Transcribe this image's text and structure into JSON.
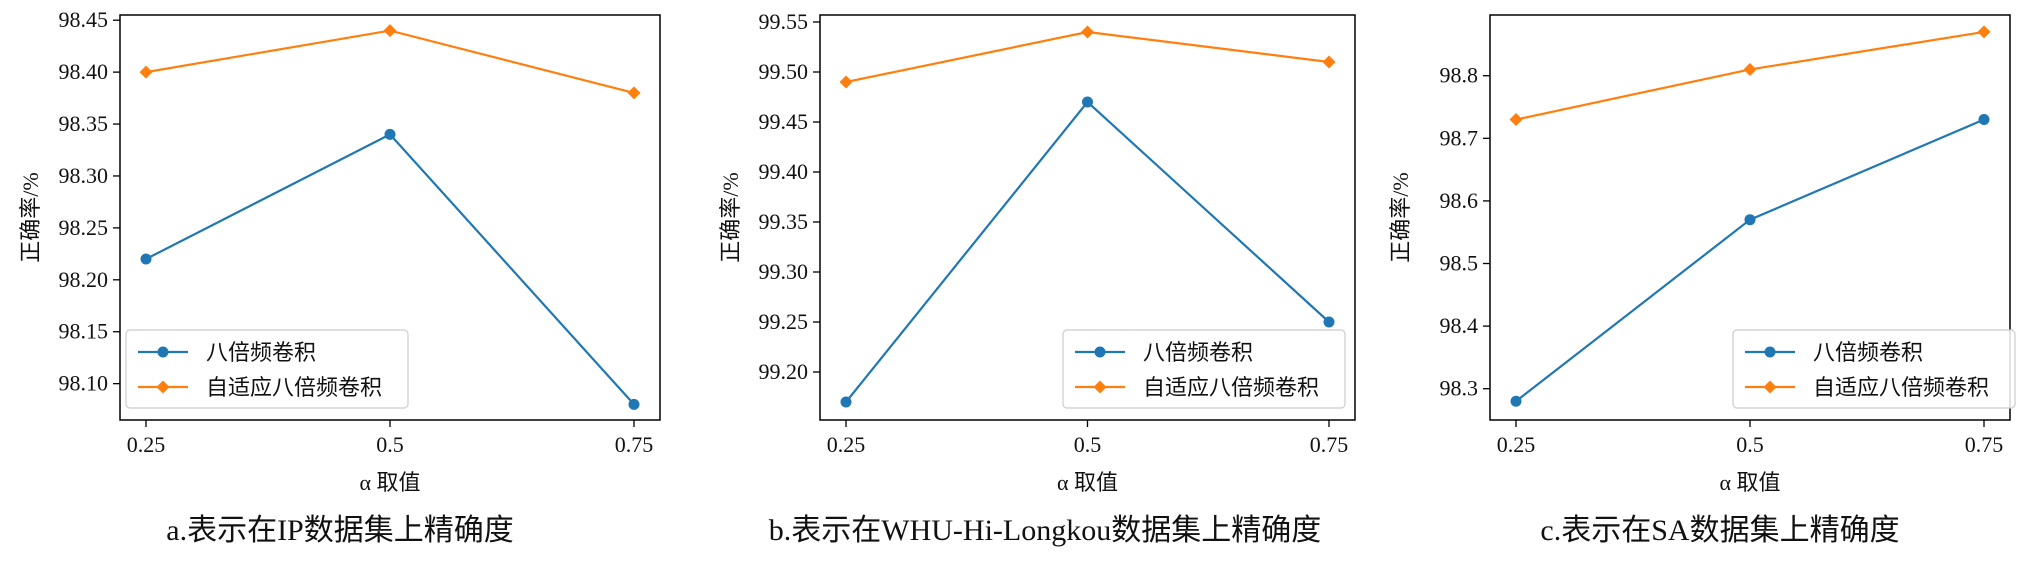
{
  "colors": {
    "series_1": "#1f77b4",
    "series_2": "#ff7f0e",
    "axis": "#000000"
  },
  "chart_data": [
    {
      "id": "a",
      "type": "line",
      "caption": "a.表示在IP数据集上精确度",
      "xlabel": "α 取值",
      "ylabel": "正确率/%",
      "categories": [
        "0.25",
        "0.5",
        "0.75"
      ],
      "yticks": [
        "98.10",
        "98.15",
        "98.20",
        "98.25",
        "98.30",
        "98.35",
        "98.40",
        "98.45"
      ],
      "ylim": [
        98.065,
        98.455
      ],
      "legend_position": "lower-left",
      "grid": false,
      "series": [
        {
          "name": "八倍频卷积",
          "marker": "circle",
          "values": [
            98.22,
            98.34,
            98.08
          ]
        },
        {
          "name": "自适应八倍频卷积",
          "marker": "diamond",
          "values": [
            98.4,
            98.44,
            98.38
          ]
        }
      ]
    },
    {
      "id": "b",
      "type": "line",
      "caption": "b.表示在WHU-Hi-Longkou数据集上精确度",
      "xlabel": "α 取值",
      "ylabel": "正确率/%",
      "categories": [
        "0.25",
        "0.5",
        "0.75"
      ],
      "yticks": [
        "99.20",
        "99.25",
        "99.30",
        "99.35",
        "99.40",
        "99.45",
        "99.50",
        "99.55"
      ],
      "ylim": [
        99.152,
        99.557
      ],
      "legend_position": "lower-right",
      "grid": false,
      "series": [
        {
          "name": "八倍频卷积",
          "marker": "circle",
          "values": [
            99.17,
            99.47,
            99.25
          ]
        },
        {
          "name": "自适应八倍频卷积",
          "marker": "diamond",
          "values": [
            99.49,
            99.54,
            99.51
          ]
        }
      ]
    },
    {
      "id": "c",
      "type": "line",
      "caption": "c.表示在SA数据集上精确度",
      "xlabel": "α 取值",
      "ylabel": "正确率/%",
      "categories": [
        "0.25",
        "0.5",
        "0.75"
      ],
      "yticks": [
        "98.3",
        "98.4",
        "98.5",
        "98.6",
        "98.7",
        "98.8"
      ],
      "ylim": [
        98.25,
        98.897
      ],
      "legend_position": "lower-right",
      "grid": false,
      "series": [
        {
          "name": "八倍频卷积",
          "marker": "circle",
          "values": [
            98.28,
            98.57,
            98.73
          ]
        },
        {
          "name": "自适应八倍频卷积",
          "marker": "diamond",
          "values": [
            98.73,
            98.81,
            98.87
          ]
        }
      ]
    }
  ]
}
